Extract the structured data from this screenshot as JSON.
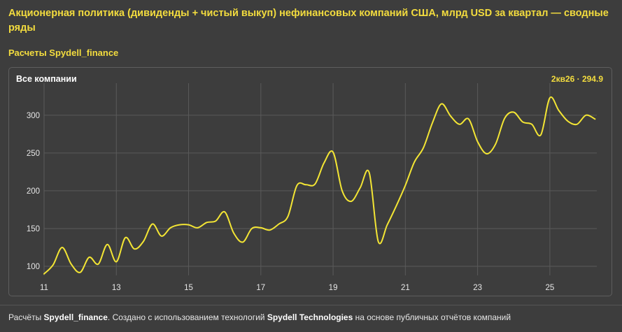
{
  "header": {
    "title": "Акционерная политика (дивиденды + чистый выкуп) нефинансовых компаний США, млрд USD за квартал — сводные ряды",
    "subtitle": "Расчеты Spydell_finance"
  },
  "panel": {
    "title": "Все компании",
    "last_value": "2кв26 · 294.9"
  },
  "footer": {
    "prefix": "Расчёты ",
    "source": "Spydell_finance",
    "middle": ". Создано с использованием технологий ",
    "tech": "Spydell Technologies",
    "suffix": " на основе публичных отчётов компаний"
  },
  "colors": {
    "line": "#f3e534",
    "accent": "#f3dc3e",
    "grid": "#5a5a5a",
    "background": "#3d3d3d"
  },
  "chart_data": {
    "type": "line",
    "title": "Все компании",
    "xlabel": "",
    "ylabel": "",
    "xlim": [
      11,
      26.3
    ],
    "ylim": [
      88,
      335
    ],
    "x_ticks": [
      11,
      13,
      15,
      17,
      19,
      21,
      23,
      25
    ],
    "y_ticks": [
      100,
      150,
      200,
      250,
      300
    ],
    "grid": true,
    "legend": "none",
    "series": [
      {
        "x": [
          11,
          11.25,
          11.5,
          11.75,
          12,
          12.25,
          12.5,
          12.75,
          13,
          13.25,
          13.5,
          13.75,
          14,
          14.25,
          14.5,
          14.75,
          15,
          15.25,
          15.5,
          15.75,
          16,
          16.25,
          16.5,
          16.75,
          17,
          17.25,
          17.5,
          17.75,
          18,
          18.25,
          18.5,
          18.75,
          19,
          19.25,
          19.5,
          19.75,
          20,
          20.25,
          20.5,
          20.75,
          21,
          21.25,
          21.5,
          21.75,
          22,
          22.25,
          22.5,
          22.75,
          23,
          23.25,
          23.5,
          23.75,
          24,
          24.25,
          24.5,
          24.75,
          25,
          25.25,
          25.5,
          25.75,
          26,
          26.25
        ],
        "values": [
          90,
          102,
          125,
          103,
          92,
          112,
          103,
          129,
          106,
          138,
          123,
          133,
          156,
          140,
          151,
          155,
          155,
          151,
          158,
          160,
          172,
          144,
          132,
          150,
          151,
          148,
          156,
          166,
          207,
          208,
          209,
          237,
          251,
          200,
          186,
          204,
          224,
          133,
          155,
          180,
          207,
          238,
          257,
          290,
          315,
          299,
          288,
          295,
          265,
          249,
          262,
          296,
          304,
          291,
          288,
          274,
          323,
          306,
          292,
          288,
          300,
          294.9
        ]
      }
    ]
  }
}
